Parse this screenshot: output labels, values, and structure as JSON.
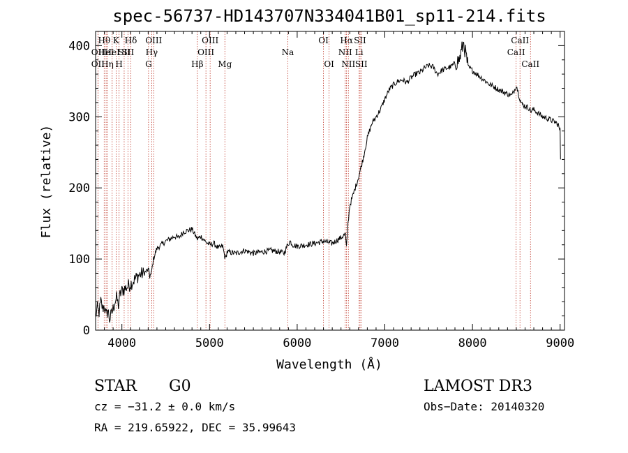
{
  "chart_data": {
    "type": "line",
    "title": "spec-56737-HD143707N334041B01_sp11-214.fits",
    "xlabel": "Wavelength (Å)",
    "ylabel": "Flux (relative)",
    "xlim": [
      3700,
      9050
    ],
    "ylim": [
      0,
      420
    ],
    "xticks": [
      "4000",
      "5000",
      "6000",
      "7000",
      "8000",
      "9000"
    ],
    "yticks": [
      "0",
      "100",
      "200",
      "300",
      "400"
    ],
    "grid": false,
    "legend": "none",
    "series": [
      {
        "color": "#000000",
        "x": [
          3700,
          3720,
          3740,
          3760,
          3780,
          3800,
          3820,
          3840,
          3860,
          3880,
          3900,
          3920,
          3940,
          3960,
          3980,
          4000,
          4050,
          4100,
          4150,
          4200,
          4250,
          4300,
          4330,
          4360,
          4400,
          4450,
          4500,
          4550,
          4600,
          4650,
          4700,
          4750,
          4800,
          4830,
          4861,
          4900,
          4950,
          5000,
          5050,
          5100,
          5150,
          5180,
          5200,
          5300,
          5400,
          5500,
          5600,
          5700,
          5800,
          5850,
          5890,
          5920,
          5950,
          6000,
          6100,
          6200,
          6300,
          6400,
          6500,
          6550,
          6562,
          6580,
          6600,
          6650,
          6700,
          6750,
          6800,
          6850,
          6900,
          6950,
          7000,
          7050,
          7100,
          7150,
          7200,
          7250,
          7300,
          7350,
          7400,
          7450,
          7500,
          7550,
          7600,
          7650,
          7700,
          7750,
          7800,
          7850,
          7880,
          7900,
          7920,
          7950,
          8000,
          8050,
          8100,
          8150,
          8200,
          8250,
          8300,
          8350,
          8400,
          8450,
          8480,
          8500,
          8520,
          8542,
          8560,
          8600,
          8650,
          8662,
          8700,
          8750,
          8800,
          8850,
          8900,
          8950,
          8980,
          9000,
          9005
        ],
        "y": [
          20,
          30,
          25,
          40,
          30,
          35,
          20,
          28,
          15,
          22,
          30,
          40,
          45,
          35,
          50,
          55,
          60,
          65,
          72,
          78,
          80,
          85,
          75,
          100,
          115,
          120,
          125,
          128,
          132,
          130,
          138,
          140,
          142,
          135,
          128,
          132,
          125,
          120,
          122,
          115,
          118,
          100,
          110,
          108,
          112,
          108,
          110,
          112,
          110,
          108,
          120,
          125,
          120,
          118,
          120,
          122,
          125,
          122,
          130,
          135,
          115,
          150,
          175,
          195,
          215,
          240,
          270,
          290,
          300,
          310,
          325,
          338,
          345,
          350,
          352,
          348,
          355,
          360,
          362,
          368,
          372,
          370,
          360,
          365,
          368,
          370,
          375,
          380,
          395,
          405,
          390,
          370,
          365,
          360,
          355,
          350,
          345,
          342,
          338,
          335,
          332,
          330,
          338,
          345,
          335,
          325,
          318,
          315,
          312,
          308,
          310,
          305,
          300,
          298,
          295,
          292,
          288,
          280,
          240
        ]
      }
    ],
    "line_markers": [
      {
        "x": 3727,
        "label": "OII",
        "row": 2
      },
      {
        "x": 3727,
        "label": "OII",
        "row": 3
      },
      {
        "x": 3798,
        "label": "Hθ",
        "row": 1
      },
      {
        "x": 3820,
        "label": "HeI",
        "row": 2
      },
      {
        "x": 3835,
        "label": "Hη",
        "row": 3
      },
      {
        "x": 3889,
        "label": "HeI",
        "row": 2
      },
      {
        "x": 3934,
        "label": "K",
        "row": 1
      },
      {
        "x": 3968,
        "label": "H",
        "row": 3
      },
      {
        "x": 4026,
        "label": "SII",
        "row": 2
      },
      {
        "x": 4102,
        "label": "Hδ",
        "row": 1
      },
      {
        "x": 4069,
        "label": "SII",
        "row": 2
      },
      {
        "x": 4304,
        "label": "G",
        "row": 3
      },
      {
        "x": 4340,
        "label": "Hγ",
        "row": 2
      },
      {
        "x": 4363,
        "label": "OIII",
        "row": 1
      },
      {
        "x": 4861,
        "label": "Hβ",
        "row": 3
      },
      {
        "x": 4959,
        "label": "OIII",
        "row": 2
      },
      {
        "x": 5007,
        "label": "OIII",
        "row": 1
      },
      {
        "x": 5175,
        "label": "Mg",
        "row": 3
      },
      {
        "x": 5893,
        "label": "Na",
        "row": 2
      },
      {
        "x": 6300,
        "label": "OI",
        "row": 1
      },
      {
        "x": 6364,
        "label": "OI",
        "row": 3
      },
      {
        "x": 6548,
        "label": "NII",
        "row": 2
      },
      {
        "x": 6563,
        "label": "Hα",
        "row": 1
      },
      {
        "x": 6584,
        "label": "NII",
        "row": 3
      },
      {
        "x": 6707,
        "label": "Li",
        "row": 2
      },
      {
        "x": 6717,
        "label": "SII",
        "row": 1
      },
      {
        "x": 6731,
        "label": "SII",
        "row": 3
      },
      {
        "x": 8498,
        "label": "CaII",
        "row": 2
      },
      {
        "x": 8542,
        "label": "CaII",
        "row": 1
      },
      {
        "x": 8662,
        "label": "CaII",
        "row": 3
      }
    ]
  },
  "info": {
    "class_label": "STAR",
    "subclass_label": "G0",
    "survey": "LAMOST DR3",
    "cz": "cz = −31.2 ± 0.0 km/s",
    "obs_date": "Obs−Date: 20140320",
    "radec": "RA = 219.65922, DEC =  35.99643"
  }
}
